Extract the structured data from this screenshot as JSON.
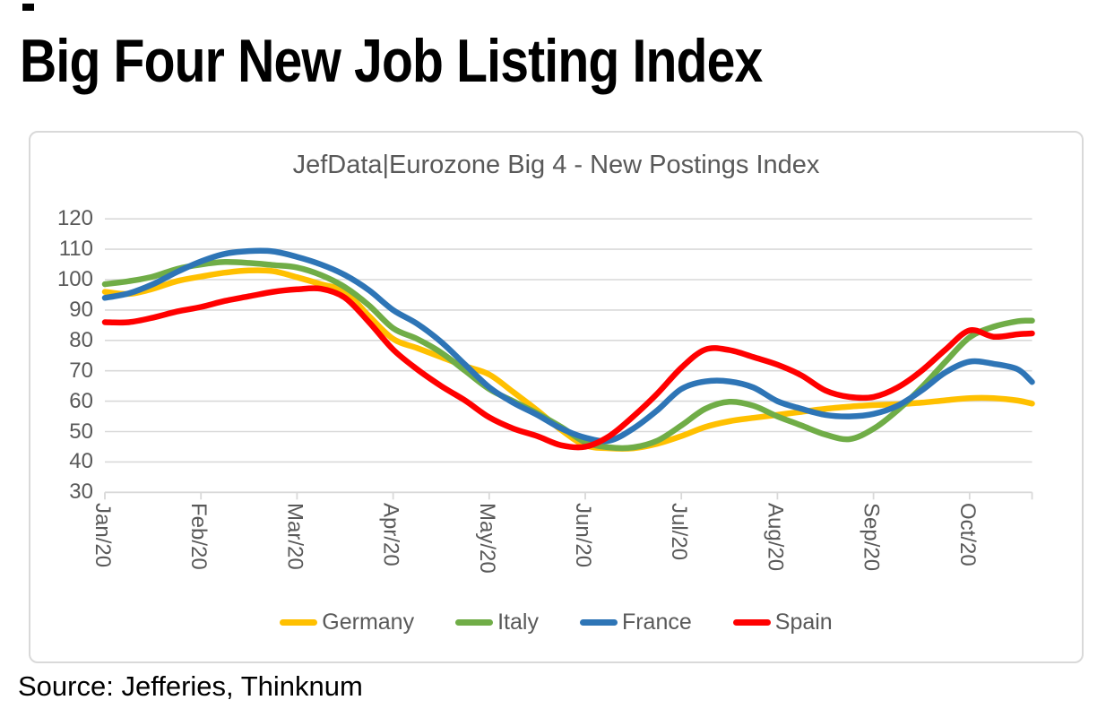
{
  "page": {
    "title": "Big Four New Job Listing Index",
    "source_note": "Source: Jefferies, Thinknum"
  },
  "chart_data": {
    "type": "line",
    "title": "JefData|Eurozone Big 4 - New Postings Index",
    "categories": [
      "Jan/20",
      "Feb/20",
      "Mar/20",
      "Apr/20",
      "May/20",
      "Jun/20",
      "Jul/20",
      "Aug/20",
      "Sep/20",
      "Oct/20"
    ],
    "x_months": [
      0,
      0.25,
      0.5,
      0.75,
      1,
      1.25,
      1.5,
      1.75,
      2,
      2.25,
      2.5,
      2.75,
      3,
      3.25,
      3.5,
      3.75,
      4,
      4.25,
      4.5,
      4.75,
      5,
      5.25,
      5.5,
      5.75,
      6,
      6.25,
      6.5,
      6.75,
      7,
      7.25,
      7.5,
      7.75,
      8,
      8.25,
      8.5,
      8.75,
      9,
      9.25,
      9.5,
      9.65
    ],
    "series": [
      {
        "name": "Germany",
        "color": "#FFC000",
        "values": [
          96,
          95.3,
          97,
          99.5,
          101,
          102.3,
          103,
          102.8,
          100.8,
          98.5,
          96,
          88,
          80.5,
          77.5,
          74.5,
          71.5,
          68.8,
          63,
          57,
          50.5,
          45.5,
          44.5,
          44.5,
          46,
          48.5,
          51.5,
          53.4,
          54.5,
          55.5,
          56.5,
          57.5,
          58.2,
          58.7,
          59,
          59.5,
          60.3,
          61,
          61,
          60.2,
          59.2
        ]
      },
      {
        "name": "Italy",
        "color": "#70AD47",
        "values": [
          98.5,
          99.5,
          101,
          103.5,
          105,
          105.8,
          105.5,
          104.8,
          104,
          101.5,
          97.5,
          91.5,
          84,
          80.5,
          76,
          70,
          64,
          60,
          56,
          51.5,
          46.5,
          44.8,
          44.8,
          47,
          52,
          57.5,
          59.8,
          58.5,
          55,
          52,
          49,
          47.5,
          50.9,
          57,
          64.5,
          73,
          81,
          84.5,
          86.3,
          86.5
        ]
      },
      {
        "name": "France",
        "color": "#2E75B6",
        "values": [
          94,
          95.5,
          98.5,
          102.5,
          106,
          108.5,
          109.4,
          109.3,
          107.5,
          105,
          101.5,
          96.5,
          90,
          85.5,
          79.5,
          72,
          64.6,
          59.5,
          55.5,
          51,
          48,
          47,
          51,
          57,
          64,
          66.5,
          66.5,
          64.5,
          60,
          57.5,
          55.5,
          55,
          55.8,
          58.5,
          63.5,
          69.5,
          73,
          72.3,
          70.5,
          66.3
        ]
      },
      {
        "name": "Spain",
        "color": "#FF0000",
        "values": [
          86,
          86,
          87.5,
          89.5,
          91,
          93,
          94.5,
          96,
          96.8,
          97,
          94,
          86,
          77,
          70.5,
          65,
          60.2,
          54.7,
          51,
          48.5,
          45.5,
          45,
          48.5,
          55,
          62.5,
          71,
          77,
          76.8,
          74.5,
          72,
          68.5,
          63.5,
          61.4,
          61.4,
          64.5,
          70,
          77,
          83.3,
          81.2,
          82,
          82.3
        ]
      }
    ],
    "ylim": [
      30,
      120
    ],
    "ytick_step": 10,
    "grid": true,
    "legend_position": "bottom",
    "axis_color": "#D9D9D9",
    "label_color": "#595959"
  }
}
